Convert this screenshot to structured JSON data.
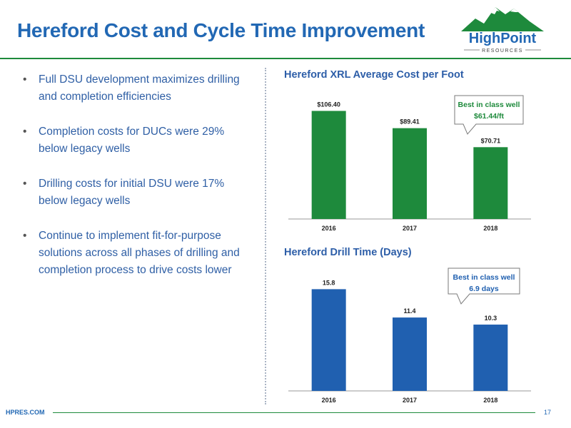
{
  "slide": {
    "title": "Hereford Cost and Cycle Time Improvement"
  },
  "logo": {
    "name": "HighPoint",
    "subtitle": "RESOURCES"
  },
  "bullets": [
    "Full DSU development maximizes drilling and completion efficiencies",
    "Completion costs for DUCs were 29% below legacy wells",
    "Drilling costs for initial DSU were 17% below legacy wells",
    "Continue to implement fit-for-purpose solutions across all phases of drilling and completion process to drive costs lower"
  ],
  "footer": {
    "site": "HPRES.COM",
    "page": "17"
  },
  "colors": {
    "green": "#1e8a3c",
    "blue": "#2060b0",
    "title_blue": "#2268b4"
  },
  "chart_data": [
    {
      "type": "bar",
      "title": "Hereford XRL Average Cost per Foot",
      "categories": [
        "2016",
        "2017",
        "2018"
      ],
      "values": [
        106.4,
        89.41,
        70.71
      ],
      "value_labels": [
        "$106.40",
        "$89.41",
        "$70.71"
      ],
      "color": "#1e8a3c",
      "ylim": [
        0,
        125
      ],
      "grid": false,
      "callout": {
        "lines": [
          "Best in class well",
          "$61.44/ft"
        ],
        "target": "2018"
      }
    },
    {
      "type": "bar",
      "title": "Hereford Drill Time (Days)",
      "categories": [
        "2016",
        "2017",
        "2018"
      ],
      "values": [
        15.8,
        11.4,
        10.3
      ],
      "value_labels": [
        "15.8",
        "11.4",
        "10.3"
      ],
      "color": "#2060b0",
      "ylim": [
        0,
        19.5
      ],
      "grid": false,
      "callout": {
        "lines": [
          "Best in class well",
          "6.9 days"
        ],
        "target": "2018"
      }
    }
  ]
}
